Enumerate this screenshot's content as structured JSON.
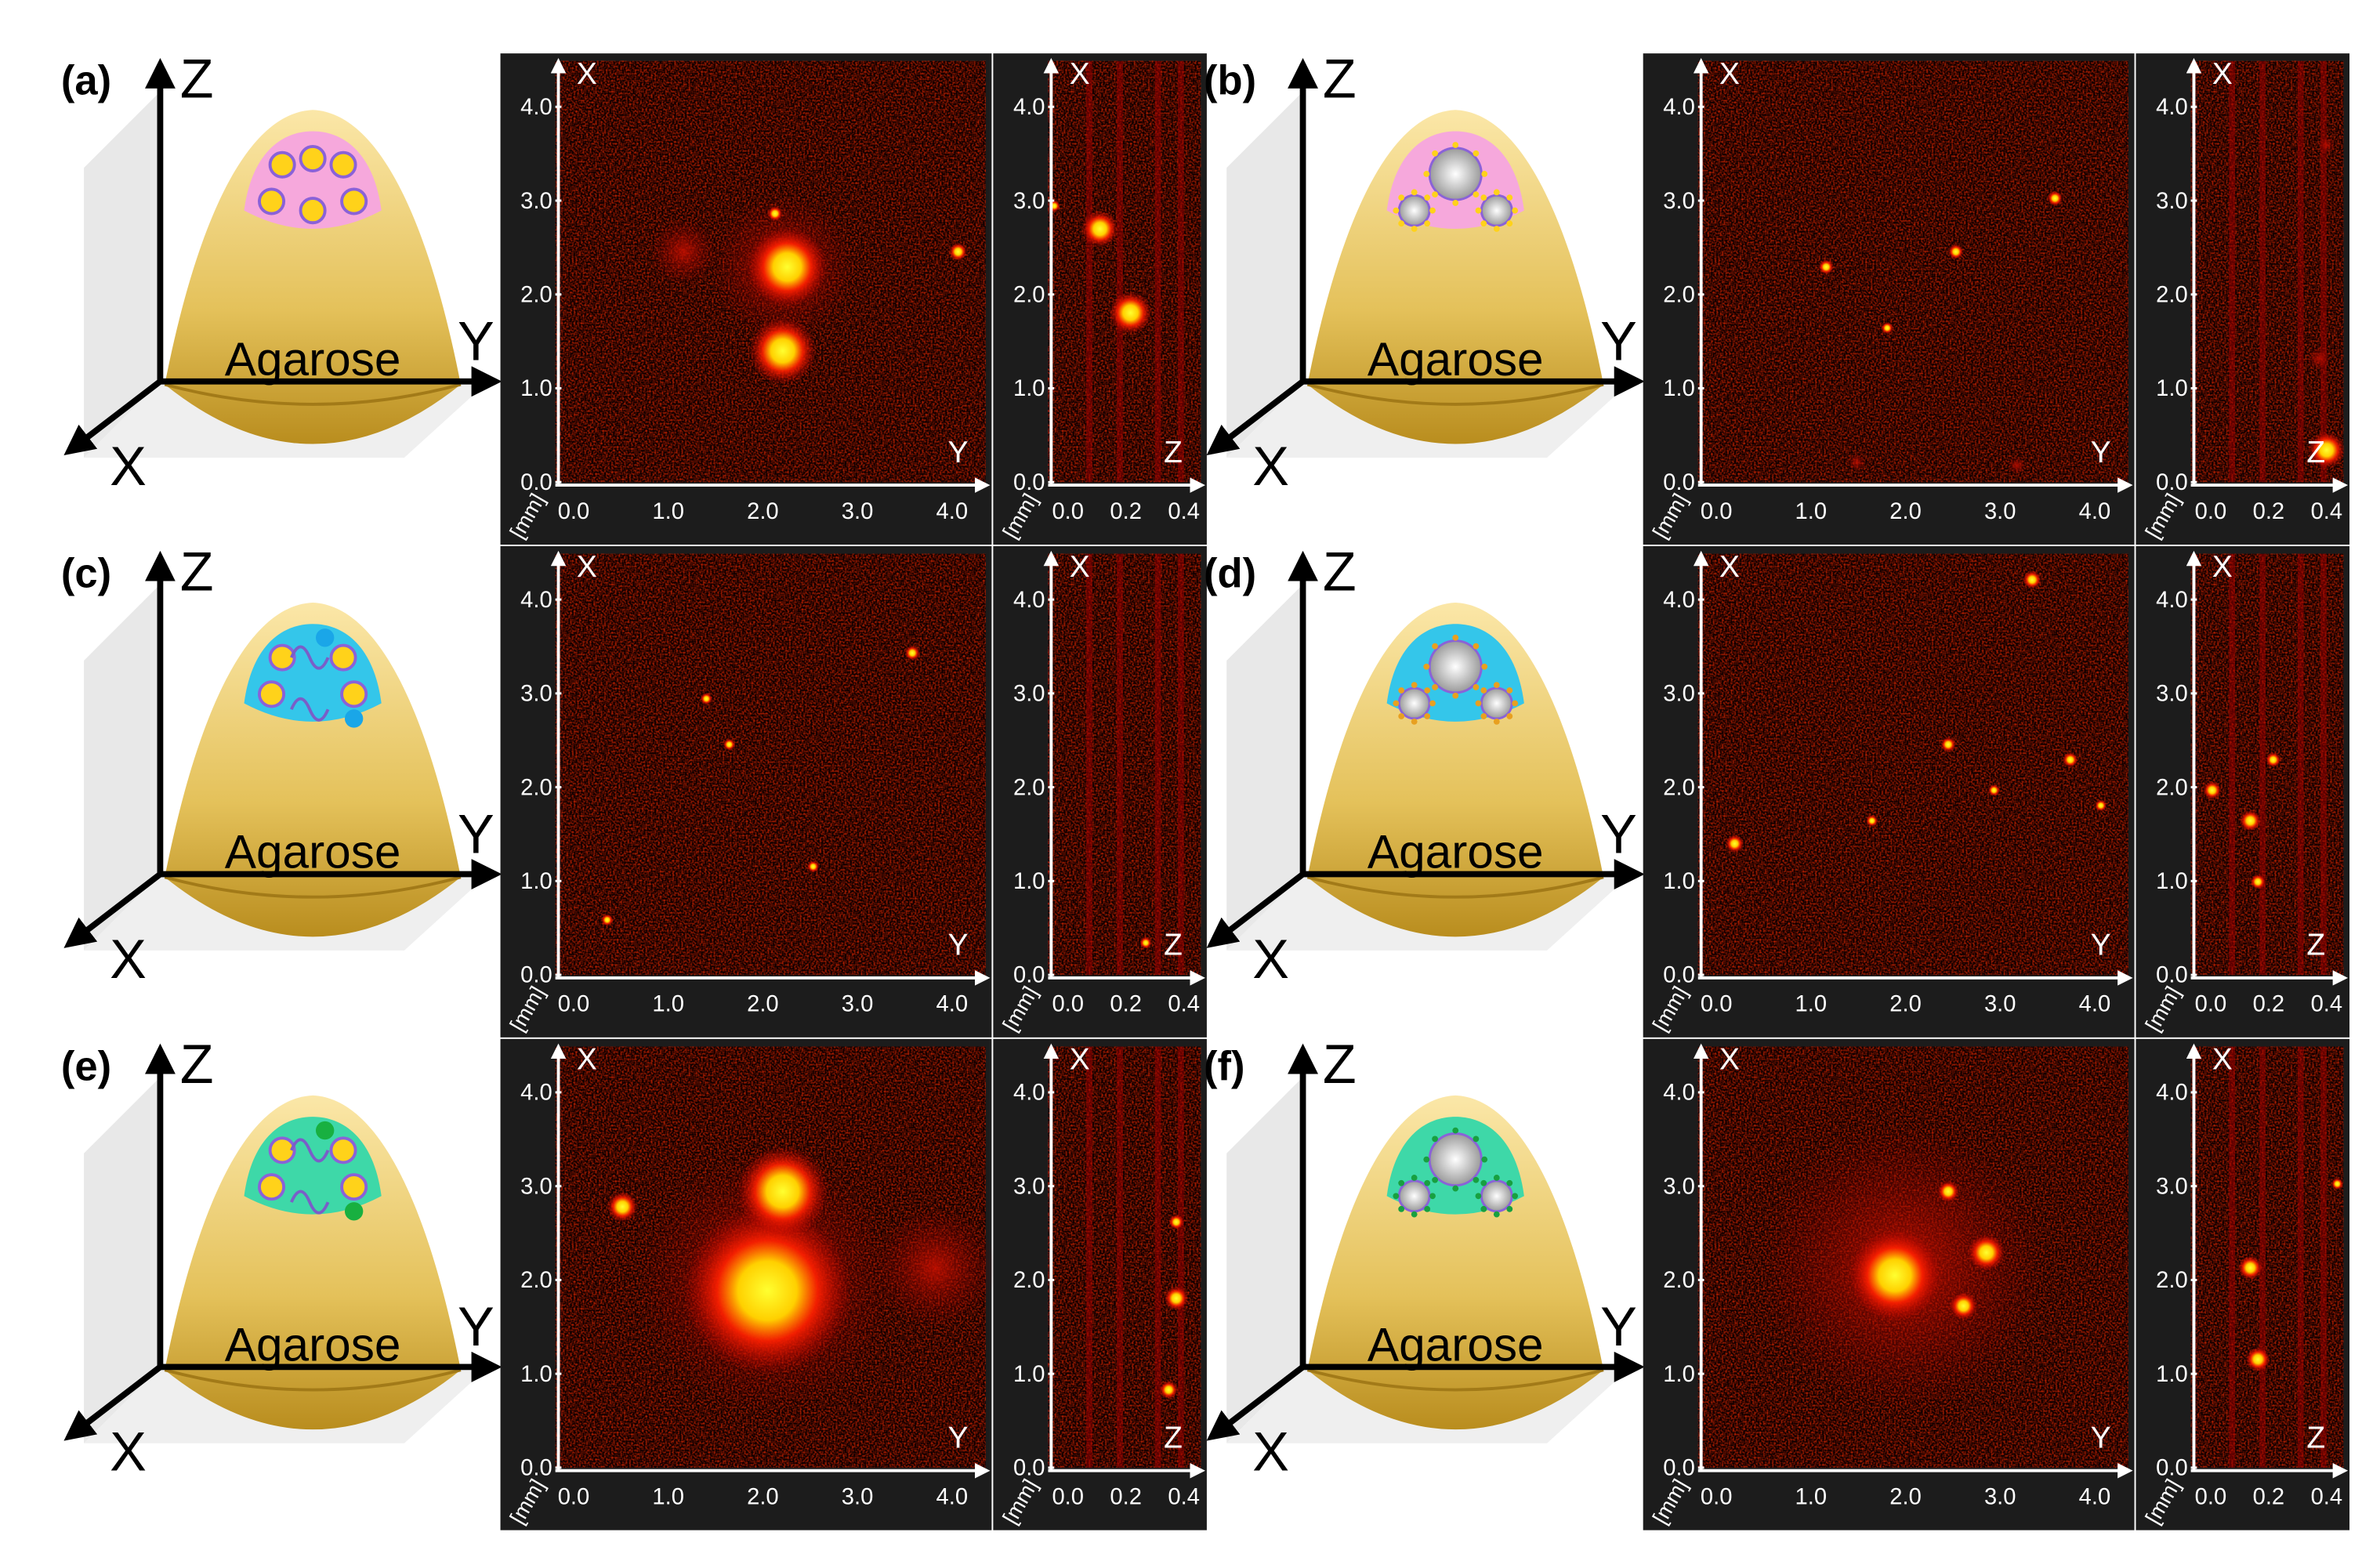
{
  "panels": [
    {
      "label": "(a)"
    },
    {
      "label": "(b)"
    },
    {
      "label": "(c)"
    },
    {
      "label": "(d)"
    },
    {
      "label": "(e)"
    },
    {
      "label": "(f)"
    }
  ],
  "axes": {
    "z": "Z",
    "y": "Y",
    "x": "X"
  },
  "sample": "Agarose",
  "image": {
    "x_axis": "X",
    "y_axis": "Y",
    "z_axis": "Z",
    "unit": "[mm]",
    "ticks": [
      "0.0",
      "1.0",
      "2.0",
      "3.0",
      "4.0"
    ],
    "depth_ticks": [
      "0.0",
      "0.2",
      "0.4"
    ]
  }
}
